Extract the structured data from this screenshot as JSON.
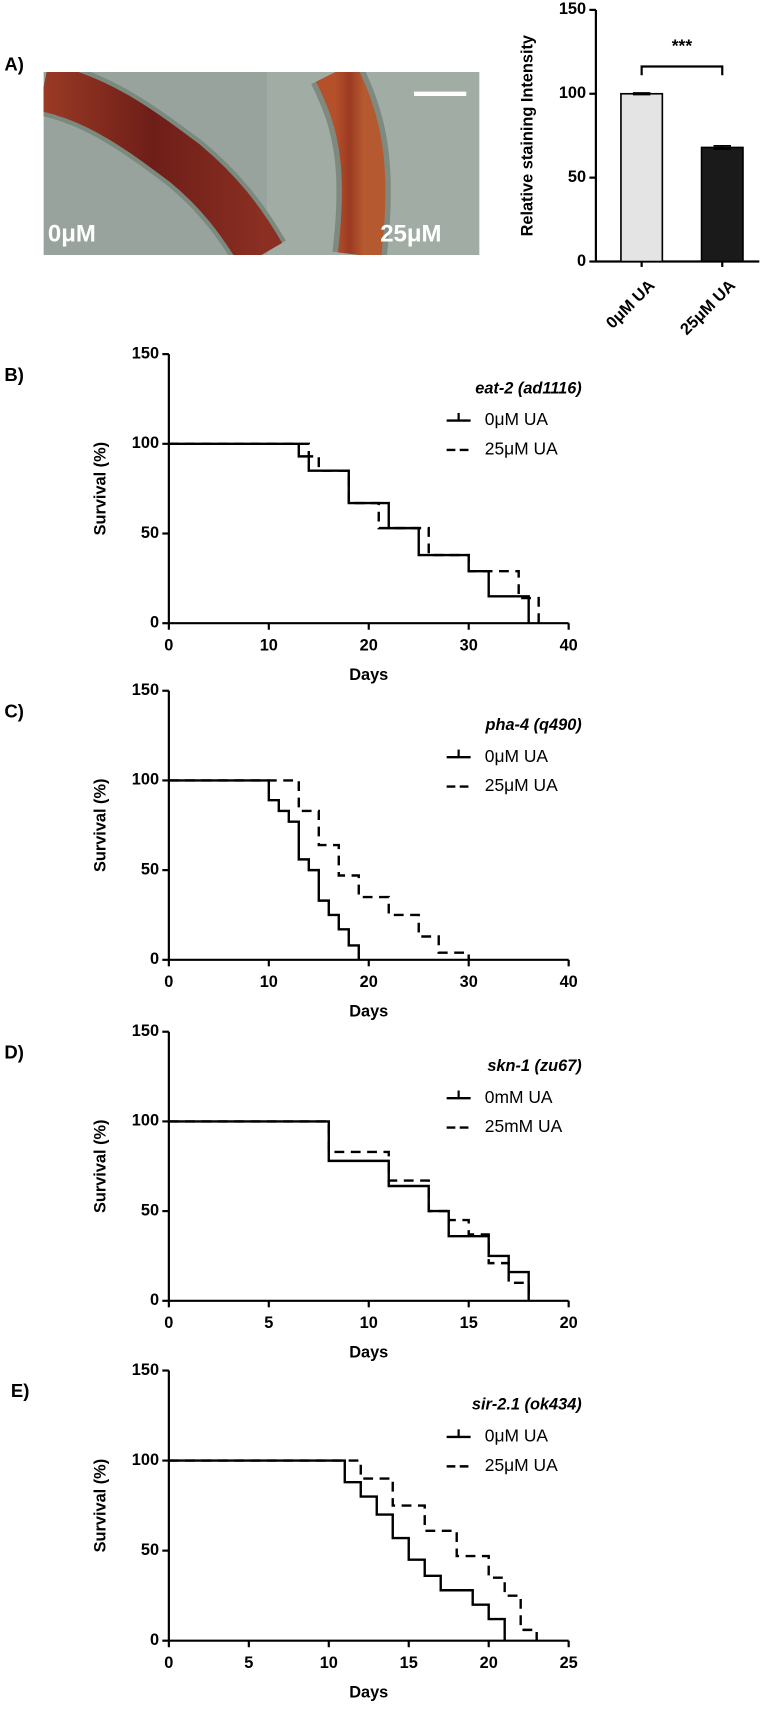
{
  "micrograph": {
    "panel": "A)",
    "labels": [
      "0μM",
      "25μM"
    ]
  },
  "chart_data": [
    {
      "type": "bar",
      "ylabel": "Relative staining Intensity",
      "categories": [
        "0μM UA",
        "25μM UA"
      ],
      "values": [
        100,
        68
      ],
      "errors": [
        0.5,
        1
      ],
      "colors": [
        "#e4e4e4",
        "#1a1a1a"
      ],
      "annotation": "***",
      "ylim": [
        0,
        150
      ],
      "yticks": [
        0,
        50,
        100,
        150
      ],
      "grid": false
    },
    {
      "type": "line",
      "step": true,
      "panel": "B)",
      "legend_title": "eat-2 (ad1116)",
      "legend": "upper right",
      "xlabel": "Days",
      "ylabel": "Survival (%)",
      "xlim": [
        0,
        40
      ],
      "xticks": [
        0,
        10,
        20,
        30,
        40
      ],
      "ylim": [
        0,
        150
      ],
      "yticks": [
        0,
        50,
        100,
        150
      ],
      "grid": false,
      "series": [
        {
          "name": "0μM UA",
          "color": "#000000",
          "line_style": "solid",
          "x": [
            0,
            13,
            14,
            18,
            22,
            25,
            30,
            32,
            36
          ],
          "values": [
            100,
            93,
            85,
            67,
            53,
            38,
            29,
            15,
            0
          ]
        },
        {
          "name": "25μM UA",
          "color": "#000000",
          "line_style": "dashed",
          "x": [
            0,
            14,
            15,
            18,
            21,
            26,
            30,
            35,
            37
          ],
          "values": [
            100,
            93,
            85,
            67,
            53,
            38,
            29,
            14,
            0
          ]
        }
      ]
    },
    {
      "type": "line",
      "step": true,
      "panel": "C)",
      "legend_title": "pha-4 (q490)",
      "legend": "upper right",
      "xlabel": "Days",
      "ylabel": "Survival (%)",
      "xlim": [
        0,
        40
      ],
      "xticks": [
        0,
        10,
        20,
        30,
        40
      ],
      "ylim": [
        0,
        150
      ],
      "yticks": [
        0,
        50,
        100,
        150
      ],
      "grid": false,
      "series": [
        {
          "name": "0μM UA",
          "color": "#000000",
          "line_style": "solid",
          "x": [
            0,
            10,
            11,
            12,
            13,
            14,
            15,
            16,
            17,
            18,
            19
          ],
          "values": [
            100,
            89,
            83,
            77,
            56,
            50,
            33,
            25,
            17,
            8,
            0
          ]
        },
        {
          "name": "25μM UA",
          "color": "#000000",
          "line_style": "dashed",
          "x": [
            0,
            13,
            15,
            17,
            19,
            22,
            25,
            27,
            30
          ],
          "values": [
            100,
            83,
            64,
            47,
            35,
            25,
            13,
            4,
            0
          ]
        }
      ]
    },
    {
      "type": "line",
      "step": true,
      "panel": "D)",
      "legend_title": "skn-1 (zu67)",
      "legend": "upper right",
      "xlabel": "Days",
      "ylabel": "Survival (%)",
      "xlim": [
        0,
        20
      ],
      "xticks": [
        0,
        5,
        10,
        15,
        20
      ],
      "ylim": [
        0,
        150
      ],
      "yticks": [
        0,
        50,
        100,
        150
      ],
      "grid": false,
      "series": [
        {
          "name": "0mM UA",
          "color": "#000000",
          "line_style": "solid",
          "x": [
            0,
            8,
            11,
            13,
            14,
            16,
            17,
            18
          ],
          "values": [
            100,
            78,
            64,
            50,
            36,
            25,
            16,
            0
          ]
        },
        {
          "name": "25mM UA",
          "color": "#000000",
          "line_style": "dashed",
          "x": [
            0,
            8,
            11,
            13,
            14,
            15,
            16,
            17,
            18
          ],
          "values": [
            100,
            83,
            67,
            50,
            45,
            37,
            21,
            10,
            0
          ]
        }
      ]
    },
    {
      "type": "line",
      "step": true,
      "panel": "E)",
      "legend_title": "sir-2.1 (ok434)",
      "legend": "upper right",
      "xlabel": "Days",
      "ylabel": "Survival (%)",
      "xlim": [
        0,
        25
      ],
      "xticks": [
        0,
        5,
        10,
        15,
        20,
        25
      ],
      "ylim": [
        0,
        150
      ],
      "yticks": [
        0,
        50,
        100,
        150
      ],
      "grid": false,
      "series": [
        {
          "name": "0μM UA",
          "color": "#000000",
          "line_style": "solid",
          "x": [
            0,
            11,
            12,
            13,
            14,
            15,
            16,
            17,
            19,
            20,
            21
          ],
          "values": [
            100,
            88,
            80,
            70,
            57,
            45,
            36,
            28,
            20,
            12,
            0
          ]
        },
        {
          "name": "25μM UA",
          "color": "#000000",
          "line_style": "dashed",
          "x": [
            0,
            12,
            14,
            16,
            18,
            20,
            21,
            22,
            23
          ],
          "values": [
            100,
            90,
            75,
            61,
            47,
            35,
            25,
            6,
            0
          ]
        }
      ]
    }
  ]
}
